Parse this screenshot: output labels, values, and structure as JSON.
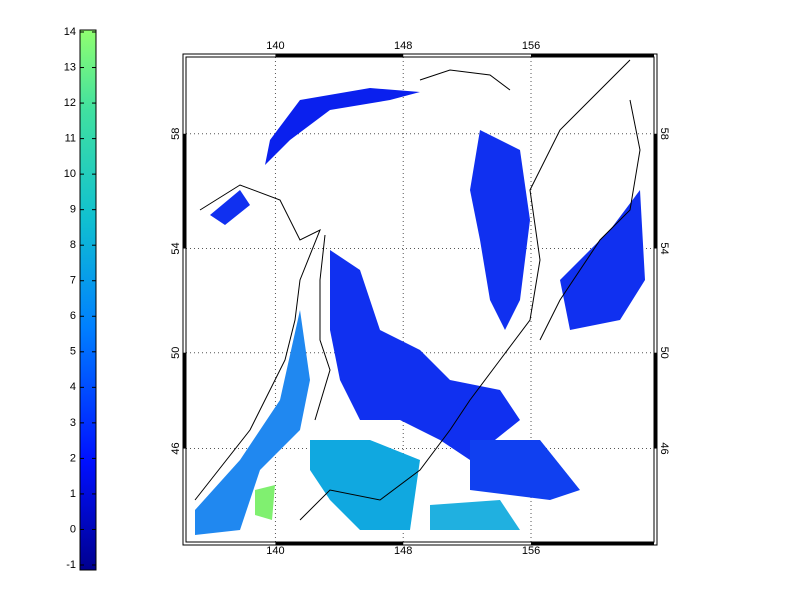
{
  "colorbar": {
    "lim": [
      -1,
      14
    ],
    "ticks": [
      -1,
      0,
      1,
      2,
      3,
      4,
      5,
      6,
      7,
      8,
      9,
      10,
      11,
      12,
      13,
      14
    ]
  },
  "map": {
    "xlim": [
      134.4,
      163.7
    ],
    "ylim": [
      41.8,
      60.45
    ],
    "xticks": [
      140,
      148,
      156
    ],
    "yticks": [
      46,
      50,
      54,
      58
    ],
    "grid": true
  }
}
